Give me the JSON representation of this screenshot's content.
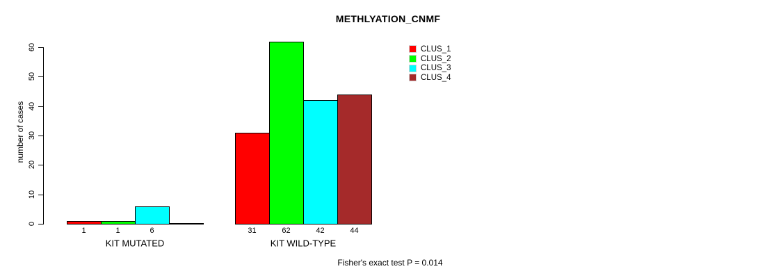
{
  "title": "METHLYATION_CNMF",
  "ylabel": "number of cases",
  "footer": "Fisher's exact test P = 0.014",
  "chart_data": {
    "type": "bar",
    "grouped": true,
    "title": "METHLYATION_CNMF",
    "xlabel": "",
    "ylabel": "number of cases",
    "categories": [
      "KIT MUTATED",
      "KIT WILD-TYPE"
    ],
    "series": [
      {
        "name": "CLUS_1",
        "color": "#FF0000",
        "values": [
          1,
          31
        ]
      },
      {
        "name": "CLUS_2",
        "color": "#00FF00",
        "values": [
          1,
          62
        ]
      },
      {
        "name": "CLUS_3",
        "color": "#00FFFF",
        "values": [
          6,
          42
        ]
      },
      {
        "name": "CLUS_4",
        "color": "#A52A2A",
        "values": [
          0,
          44
        ]
      }
    ],
    "bar_value_labels": [
      [
        "1",
        "1",
        "6",
        ""
      ],
      [
        "31",
        "62",
        "42",
        "44"
      ]
    ],
    "yticks": [
      0,
      10,
      20,
      30,
      40,
      50,
      60
    ],
    "ylim": [
      0,
      62
    ],
    "grid": false,
    "legend_position": "top-right",
    "legend_entries": [
      "CLUS_1",
      "CLUS_2",
      "CLUS_3",
      "CLUS_4"
    ],
    "annotation": "Fisher's exact test P = 0.014"
  }
}
